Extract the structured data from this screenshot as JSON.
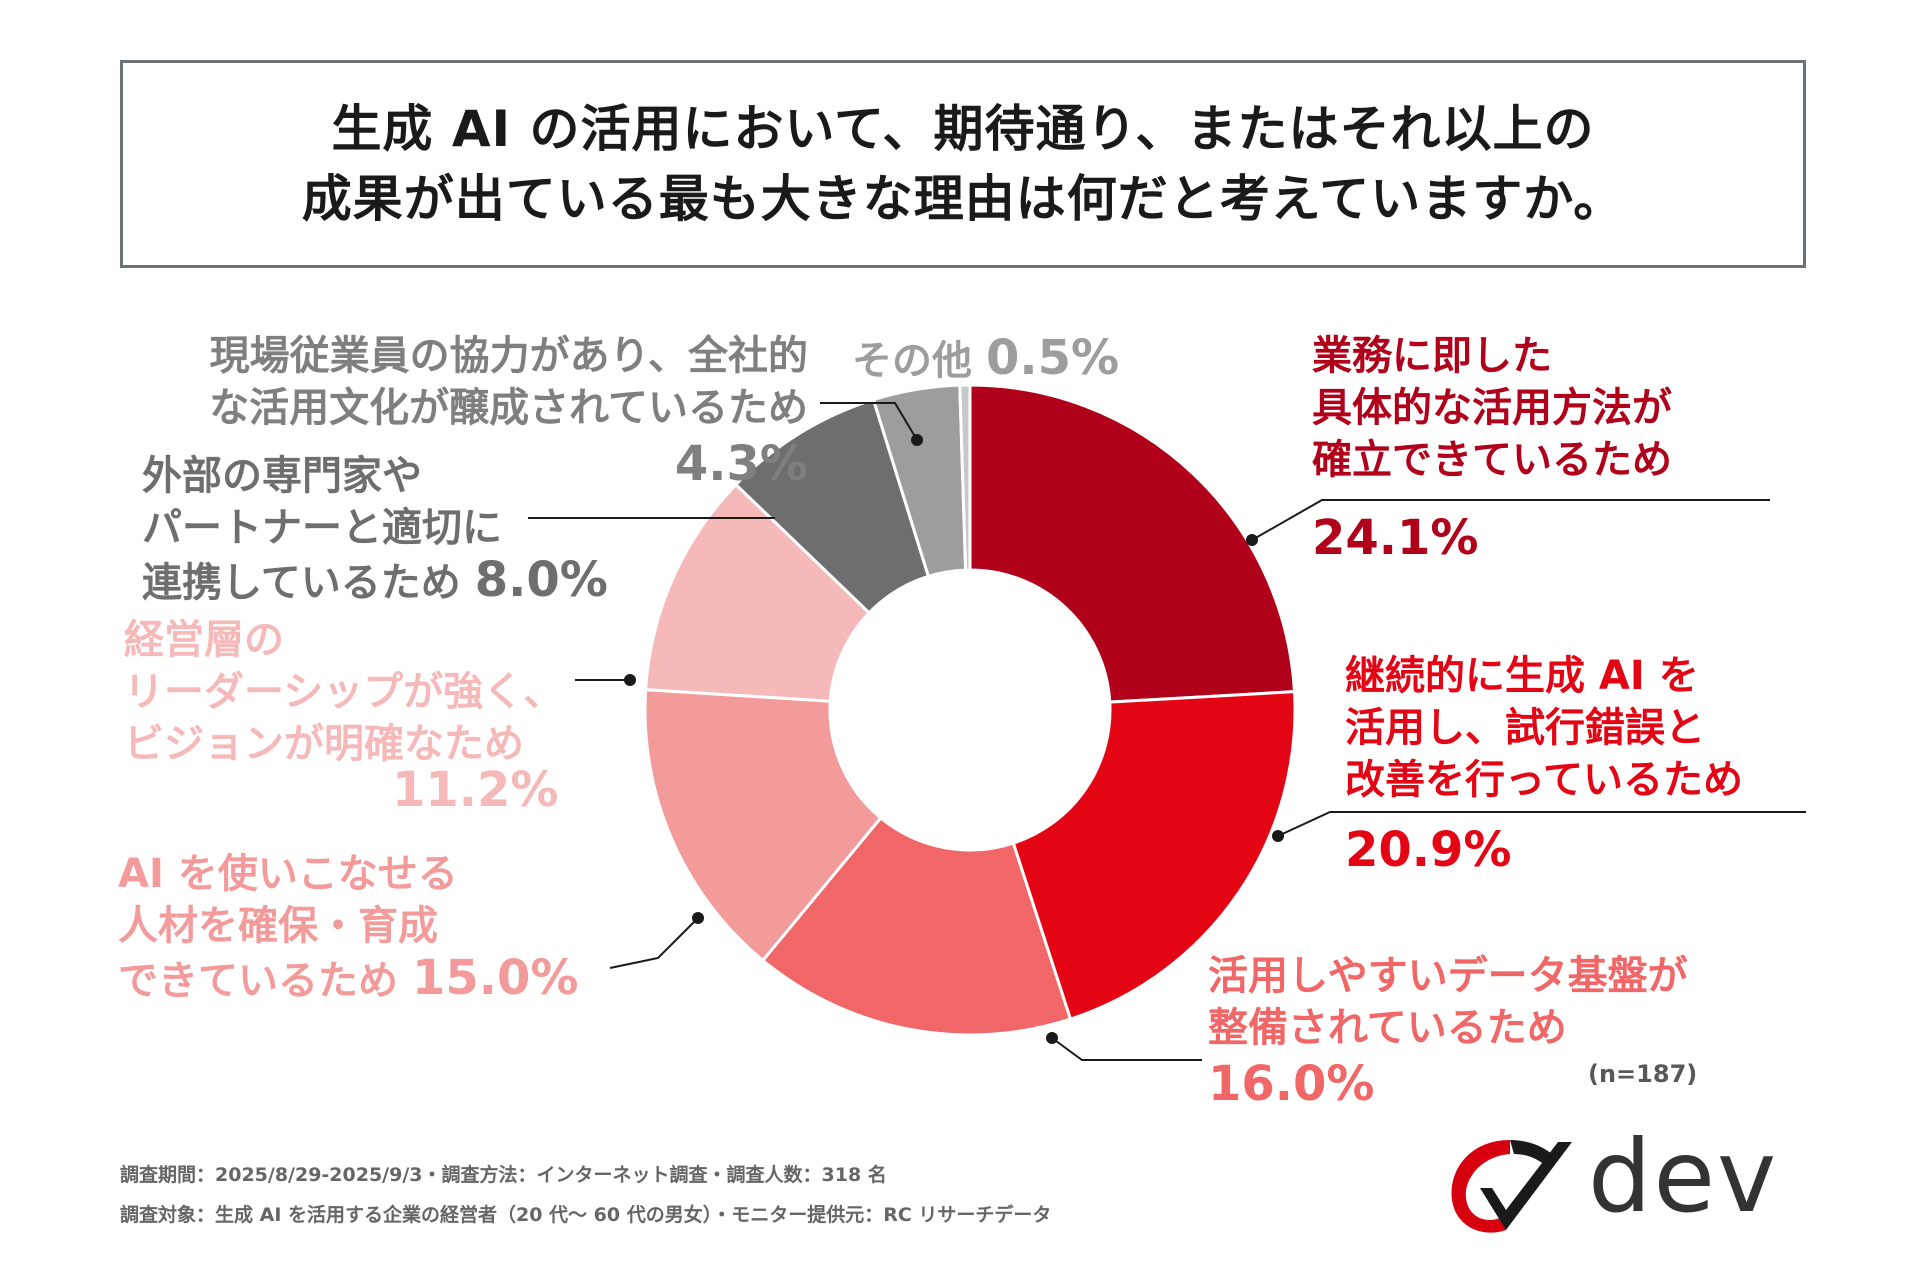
{
  "title": {
    "line1": "生成 AI の活用において、期待通り、またはそれ以上の",
    "line2": "成果が出ている最も大きな理由は何だと考えていますか。"
  },
  "chart_data": {
    "type": "pie",
    "donut": true,
    "n_note": "(n=187)",
    "slices": [
      {
        "label": "業務に即した具体的な活用方法が確立できているため",
        "value": 24.1,
        "pct": "24.1%",
        "color": "#b0001a"
      },
      {
        "label": "継続的に生成 AI を活用し、試行錯誤と改善を行っているため",
        "value": 20.9,
        "pct": "20.9%",
        "color": "#e40514"
      },
      {
        "label": "活用しやすいデータ基盤が整備されているため",
        "value": 16.0,
        "pct": "16.0%",
        "color": "#f16666"
      },
      {
        "label": "AI を使いこなせる人材を確保・育成できているため",
        "value": 15.0,
        "pct": "15.0%",
        "color": "#f39b9b"
      },
      {
        "label": "経営層のリーダーシップが強く、ビジョンが明確なため",
        "value": 11.2,
        "pct": "11.2%",
        "color": "#f6b9b9"
      },
      {
        "label": "外部の専門家やパートナーと適切に連携しているため",
        "value": 8.0,
        "pct": "8.0%",
        "color": "#6e6e6e"
      },
      {
        "label": "現場従業員の協力があり、全社的な活用文化が醸成されているため",
        "value": 4.3,
        "pct": "4.3%",
        "color": "#9d9d9d"
      },
      {
        "label": "その他",
        "value": 0.5,
        "pct": "0.5%",
        "color": "#c8c8c8"
      }
    ]
  },
  "labels": {
    "s1": {
      "l1": "業務に即した",
      "l2": "具体的な活用方法が",
      "l3": "確立できているため",
      "pct": "24.1%"
    },
    "s2": {
      "l1": "継続的に生成 AI を",
      "l2": "活用し、試行錯誤と",
      "l3": "改善を行っているため",
      "pct": "20.9%"
    },
    "s3": {
      "l1": "活用しやすいデータ基盤が",
      "l2": "整備されているため",
      "pct": "16.0%"
    },
    "s4": {
      "l1": "AI を使いこなせる",
      "l2": "人材を確保・育成",
      "l3": "できているため",
      "pct": "15.0%"
    },
    "s5": {
      "l1": "経営層の",
      "l2": "リーダーシップが強く、",
      "l3": "ビジョンが明確なため",
      "pct": "11.2%"
    },
    "s6": {
      "l1": "外部の専門家や",
      "l2": "パートナーと適切に",
      "l3": "連携しているため",
      "pct": "8.0%"
    },
    "s7": {
      "l1": "現場従業員の協力があり、全社的",
      "l2": "な活用文化が醸成されているため",
      "pct": "4.3%"
    },
    "s8": {
      "l1": "その他",
      "pct": "0.5%"
    }
  },
  "footer": {
    "line1": "調査期間：2025/8/29-2025/9/3・調査方法：インターネット調査・調査人数：318 名",
    "line2": "調査対象：生成 AI を活用する企業の経営者（20 代～ 60 代の男女）・モニター提供元：RC リサーチデータ"
  },
  "logo": {
    "text": "dev",
    "mark_color": "#d7000f",
    "text_color": "#333333"
  }
}
